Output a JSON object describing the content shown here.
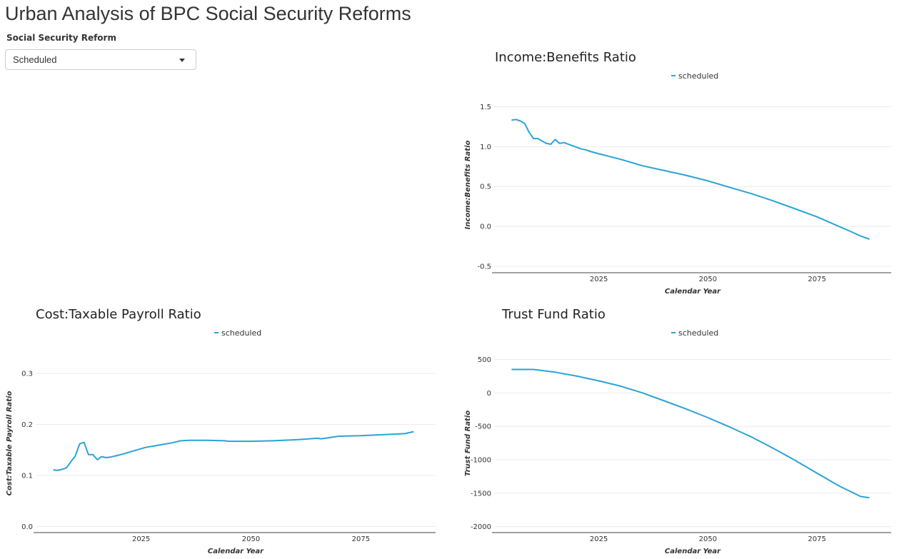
{
  "app": {
    "title": "Urban Analysis of BPC Social Security Reforms"
  },
  "control": {
    "label": "Social Security Reform",
    "selected": "Scheduled"
  },
  "icons": {
    "dropdown": "caret-down-icon"
  },
  "colors": {
    "series": "#2ba3d6",
    "axis": "#444444",
    "grid": "#ececec"
  },
  "chart_data": [
    {
      "id": "income-benefits",
      "type": "line",
      "title": "Income:Benefits Ratio",
      "xlabel": "Calendar Year",
      "ylabel": "Income:Benefits Ratio",
      "legend_position": "top-center",
      "grid": true,
      "xlim": [
        2001,
        2092
      ],
      "ylim": [
        -0.58,
        1.62
      ],
      "xticks": [
        2025,
        2050,
        2075
      ],
      "yticks": [
        -0.5,
        0.0,
        0.5,
        1.0,
        1.5
      ],
      "ytick_labels": [
        "-0.5",
        "0.0",
        "0.5",
        "1.0",
        "1.5"
      ],
      "series": [
        {
          "name": "scheduled",
          "x": [
            2005,
            2006,
            2007,
            2008,
            2009,
            2010,
            2011,
            2012,
            2013,
            2014,
            2015,
            2016,
            2017,
            2018,
            2019,
            2020,
            2021,
            2022,
            2023,
            2025,
            2030,
            2035,
            2040,
            2045,
            2050,
            2055,
            2060,
            2065,
            2070,
            2075,
            2080,
            2083,
            2085,
            2087
          ],
          "y": [
            1.33,
            1.34,
            1.32,
            1.29,
            1.18,
            1.1,
            1.1,
            1.07,
            1.04,
            1.03,
            1.09,
            1.04,
            1.05,
            1.03,
            1.01,
            0.99,
            0.97,
            0.96,
            0.94,
            0.91,
            0.84,
            0.76,
            0.7,
            0.64,
            0.57,
            0.49,
            0.41,
            0.32,
            0.22,
            0.12,
            0.0,
            -0.07,
            -0.12,
            -0.16
          ]
        }
      ]
    },
    {
      "id": "cost-taxable-payroll",
      "type": "line",
      "title": "Cost:Taxable Payroll Ratio",
      "xlabel": "Calendar Year",
      "ylabel": "Cost:Taxable Payroll Ratio",
      "legend_position": "top-center",
      "grid": true,
      "xlim": [
        2001,
        2092
      ],
      "ylim": [
        -0.012,
        0.338
      ],
      "xticks": [
        2025,
        2050,
        2075
      ],
      "yticks": [
        0.0,
        0.1,
        0.2,
        0.3
      ],
      "ytick_labels": [
        "0.0",
        "0.1",
        "0.2",
        "0.3"
      ],
      "series": [
        {
          "name": "scheduled",
          "x": [
            2005,
            2006,
            2007,
            2008,
            2009,
            2010,
            2011,
            2012,
            2013,
            2014,
            2015,
            2016,
            2017,
            2018,
            2020,
            2022,
            2024,
            2026,
            2028,
            2030,
            2032,
            2034,
            2036,
            2040,
            2044,
            2045,
            2050,
            2055,
            2060,
            2062,
            2065,
            2066,
            2070,
            2075,
            2080,
            2085,
            2087
          ],
          "y": [
            0.111,
            0.11,
            0.112,
            0.115,
            0.127,
            0.138,
            0.162,
            0.165,
            0.141,
            0.141,
            0.131,
            0.137,
            0.135,
            0.136,
            0.14,
            0.145,
            0.15,
            0.155,
            0.158,
            0.161,
            0.164,
            0.168,
            0.169,
            0.169,
            0.168,
            0.167,
            0.167,
            0.168,
            0.17,
            0.171,
            0.173,
            0.172,
            0.177,
            0.178,
            0.18,
            0.182,
            0.186
          ]
        }
      ]
    },
    {
      "id": "trust-fund",
      "type": "line",
      "title": "Trust Fund Ratio",
      "xlabel": "Calendar Year",
      "ylabel": "Trust Fund Ratio",
      "legend_position": "top-center",
      "grid": true,
      "xlim": [
        2001,
        2092
      ],
      "ylim": [
        -2090,
        580
      ],
      "xticks": [
        2025,
        2050,
        2075
      ],
      "yticks": [
        -2000,
        -1500,
        -1000,
        -500,
        0,
        500
      ],
      "ytick_labels": [
        "-2000",
        "-1500",
        "-1000",
        "-500",
        "0",
        "500"
      ],
      "series": [
        {
          "name": "scheduled",
          "x": [
            2005,
            2010,
            2015,
            2020,
            2025,
            2030,
            2035,
            2040,
            2045,
            2050,
            2055,
            2060,
            2065,
            2070,
            2075,
            2080,
            2085,
            2087
          ],
          "y": [
            350,
            350,
            310,
            250,
            180,
            100,
            0,
            -120,
            -240,
            -370,
            -510,
            -660,
            -830,
            -1010,
            -1200,
            -1390,
            -1550,
            -1570
          ]
        }
      ]
    }
  ]
}
